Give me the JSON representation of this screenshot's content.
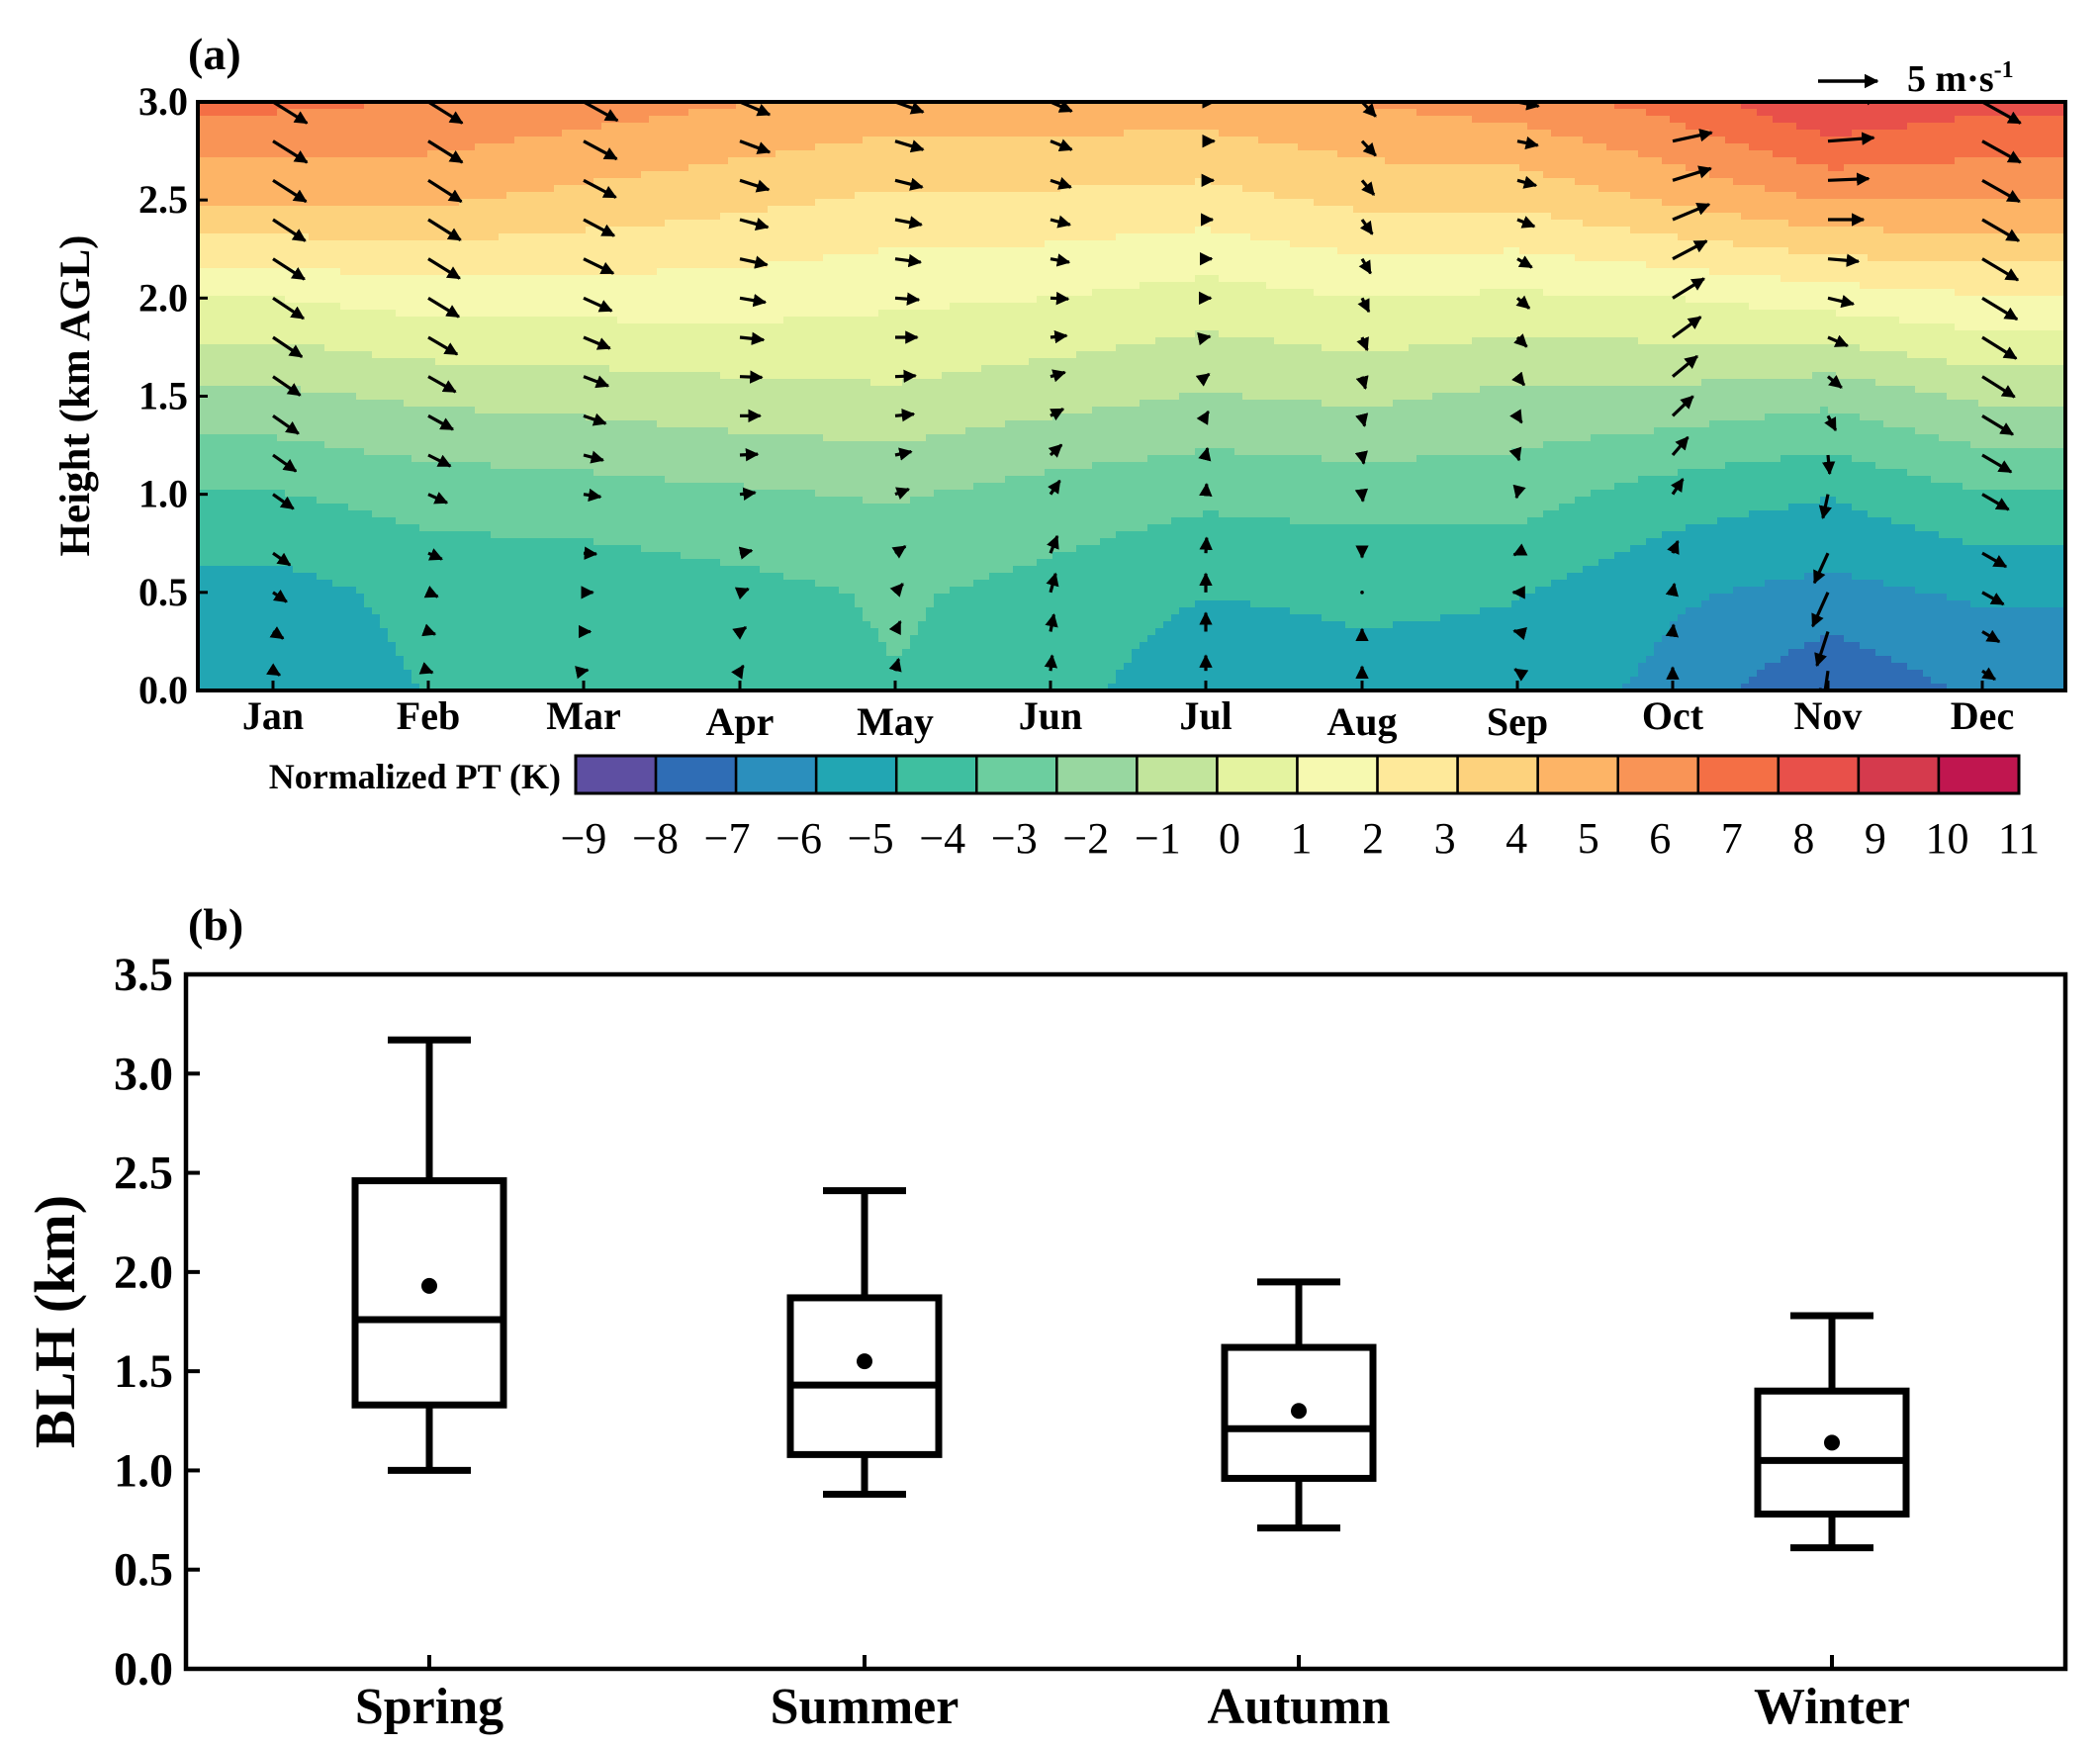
{
  "chart_data": [
    {
      "panel_label": "(a)",
      "type": "heatmap",
      "subtype": "filled-contour with wind vectors",
      "ylabel": "Height (km AGL)",
      "ylim": [
        0,
        3.0
      ],
      "yticks": [
        "0.0",
        "0.5",
        "1.0",
        "1.5",
        "2.0",
        "2.5",
        "3.0"
      ],
      "months": [
        "Jan",
        "Feb",
        "Mar",
        "Apr",
        "May",
        "Jun",
        "Jul",
        "Aug",
        "Sep",
        "Oct",
        "Nov",
        "Dec"
      ],
      "vector_key": {
        "prefix": "5 m·s",
        "exponent": "-1",
        "magnitude": 5
      },
      "colorbar": {
        "label": "Normalized PT (K)",
        "ticks": [
          "−9",
          "−8",
          "−7",
          "−6",
          "−5",
          "−4",
          "−3",
          "−2",
          "−1",
          "0",
          "1",
          "2",
          "3",
          "4",
          "5",
          "6",
          "7",
          "8",
          "9",
          "10",
          "11"
        ],
        "colors": [
          "#5e4fa2",
          "#2f6db5",
          "#2b8fbd",
          "#22a6b3",
          "#3fbfa0",
          "#6cce9f",
          "#98d7a0",
          "#c2e59c",
          "#e4f3a0",
          "#f6f9b0",
          "#fee99a",
          "#fdd27d",
          "#fdb466",
          "#f99456",
          "#f46f45",
          "#e8504a",
          "#d53a4d",
          "#c0164f"
        ]
      },
      "pt_grid_heights_km": [
        0.0,
        0.5,
        1.0,
        1.5,
        2.0,
        2.5,
        3.0
      ],
      "normalized_pt_by_month": [
        [
          -5.5,
          -5.0,
          -3.5,
          -1.5,
          1.0,
          4.5,
          6.8
        ],
        [
          -4.5,
          -4.2,
          -3.0,
          -1.0,
          1.5,
          4.5,
          6.5
        ],
        [
          -4.5,
          -4.2,
          -2.8,
          -0.8,
          1.5,
          4.0,
          6.0
        ],
        [
          -4.0,
          -3.8,
          -2.5,
          -0.5,
          1.5,
          3.5,
          5.5
        ],
        [
          -3.5,
          -3.3,
          -2.2,
          -0.3,
          1.2,
          3.0,
          5.0
        ],
        [
          -4.0,
          -3.8,
          -2.8,
          -0.8,
          1.0,
          3.0,
          5.0
        ],
        [
          -5.5,
          -4.5,
          -3.2,
          -1.3,
          0.5,
          2.8,
          5.0
        ],
        [
          -5.0,
          -4.3,
          -3.0,
          -1.0,
          1.0,
          3.5,
          5.5
        ],
        [
          -5.0,
          -4.5,
          -3.0,
          -1.5,
          0.8,
          3.5,
          6.0
        ],
        [
          -6.0,
          -5.5,
          -4.0,
          -1.5,
          1.0,
          4.5,
          7.0
        ],
        [
          -7.8,
          -6.0,
          -4.5,
          -2.0,
          1.5,
          5.5,
          8.8
        ],
        [
          -6.5,
          -5.5,
          -3.5,
          -1.0,
          2.0,
          5.5,
          8.0
        ]
      ],
      "wind_vector_heights_km": [
        0.1,
        0.3,
        0.5,
        0.7,
        1.0,
        1.2,
        1.4,
        1.6,
        1.8,
        2.0,
        2.2,
        2.4,
        2.6,
        2.8,
        3.0
      ],
      "wind_u_ms": [
        [
          0.8,
          1.2,
          1.6,
          2.0,
          2.4,
          2.7,
          3.0,
          3.2,
          3.4,
          3.6,
          3.7,
          3.8,
          3.9,
          4.0,
          4.0
        ],
        [
          0.5,
          0.8,
          1.1,
          1.6,
          2.2,
          2.6,
          2.9,
          3.2,
          3.4,
          3.6,
          3.7,
          3.8,
          3.9,
          4.0,
          4.0
        ],
        [
          0.5,
          0.8,
          1.1,
          1.5,
          2.0,
          2.3,
          2.6,
          2.9,
          3.1,
          3.3,
          3.5,
          3.6,
          3.8,
          3.9,
          4.0
        ],
        [
          0.4,
          0.7,
          1.0,
          1.4,
          1.8,
          2.1,
          2.4,
          2.6,
          2.8,
          3.0,
          3.2,
          3.3,
          3.4,
          3.5,
          3.5
        ],
        [
          0.4,
          0.6,
          0.9,
          1.2,
          1.6,
          1.9,
          2.2,
          2.4,
          2.6,
          2.8,
          3.0,
          3.1,
          3.2,
          3.3,
          3.3
        ],
        [
          0.2,
          0.4,
          0.6,
          0.8,
          1.1,
          1.3,
          1.5,
          1.7,
          1.9,
          2.1,
          2.2,
          2.3,
          2.4,
          2.5,
          2.5
        ],
        [
          0.0,
          0.0,
          0.0,
          0.1,
          0.1,
          0.2,
          0.3,
          0.4,
          0.5,
          0.6,
          0.7,
          0.8,
          0.9,
          1.0,
          1.0
        ],
        [
          0.0,
          0.0,
          0.0,
          0.0,
          0.1,
          0.2,
          0.3,
          0.4,
          0.6,
          0.8,
          1.0,
          1.2,
          1.4,
          1.6,
          1.6
        ],
        [
          -0.3,
          -0.4,
          -0.5,
          -0.4,
          -0.1,
          0.2,
          0.5,
          0.8,
          1.1,
          1.4,
          1.7,
          2.0,
          2.2,
          2.4,
          2.5
        ],
        [
          0.0,
          0.1,
          0.2,
          0.6,
          1.2,
          1.8,
          2.4,
          2.9,
          3.3,
          3.7,
          4.0,
          4.3,
          4.5,
          4.6,
          4.6
        ],
        [
          -0.5,
          -1.3,
          -1.8,
          -1.6,
          -0.6,
          0.2,
          0.9,
          1.6,
          2.3,
          3.0,
          3.6,
          4.2,
          4.8,
          5.4,
          6.0
        ],
        [
          1.5,
          2.0,
          2.5,
          2.8,
          3.1,
          3.4,
          3.6,
          3.8,
          4.0,
          4.1,
          4.2,
          4.3,
          4.4,
          4.5,
          4.5
        ]
      ],
      "wind_v_ms": [
        [
          -0.5,
          -0.8,
          -1.1,
          -1.4,
          -1.7,
          -1.9,
          -2.1,
          -2.2,
          -2.3,
          -2.4,
          -2.4,
          -2.5,
          -2.5,
          -2.5,
          -2.5
        ],
        [
          -0.2,
          -0.3,
          -0.5,
          -0.7,
          -1.0,
          -1.3,
          -1.6,
          -1.8,
          -2.0,
          -2.2,
          -2.3,
          -2.4,
          -2.5,
          -2.5,
          -2.5
        ],
        [
          0.1,
          0.0,
          0.0,
          -0.1,
          -0.3,
          -0.6,
          -0.9,
          -1.1,
          -1.3,
          -1.5,
          -1.7,
          -1.9,
          -2.0,
          -2.1,
          -2.2
        ],
        [
          0.6,
          0.5,
          0.4,
          0.3,
          0.2,
          0.1,
          0.0,
          -0.1,
          -0.3,
          -0.5,
          -0.7,
          -0.9,
          -1.1,
          -1.3,
          -1.5
        ],
        [
          1.4,
          1.2,
          1.0,
          0.8,
          0.6,
          0.4,
          0.2,
          0.1,
          0.0,
          -0.2,
          -0.4,
          -0.6,
          -0.8,
          -1.0,
          -1.2
        ],
        [
          1.8,
          2.0,
          2.2,
          2.0,
          1.6,
          1.2,
          0.8,
          0.5,
          0.2,
          -0.1,
          -0.4,
          -0.6,
          -0.8,
          -1.0,
          -1.1
        ],
        [
          1.8,
          2.2,
          2.2,
          1.8,
          1.2,
          0.8,
          0.5,
          0.3,
          0.1,
          0.0,
          0.0,
          0.0,
          0.0,
          0.0,
          0.0
        ],
        [
          0.5,
          0.3,
          0.0,
          -0.5,
          -0.8,
          -1.0,
          -1.2,
          -1.4,
          -1.5,
          -1.6,
          -1.7,
          -1.7,
          -1.7,
          -1.7,
          -1.7
        ],
        [
          0.2,
          0.1,
          0.0,
          -0.2,
          -0.4,
          -0.6,
          -0.8,
          -1.0,
          -1.1,
          -1.2,
          -1.0,
          -0.8,
          -0.6,
          -0.5,
          -0.5
        ],
        [
          0.4,
          0.8,
          1.0,
          1.4,
          1.8,
          2.1,
          2.3,
          2.4,
          2.4,
          2.3,
          2.1,
          1.8,
          1.4,
          1.0,
          0.8
        ],
        [
          -3.5,
          -4.0,
          -4.0,
          -3.5,
          -2.8,
          -2.2,
          -1.7,
          -1.3,
          -1.0,
          -0.7,
          -0.3,
          0.0,
          0.2,
          0.4,
          0.5
        ],
        [
          -1.0,
          -1.2,
          -1.4,
          -1.6,
          -1.8,
          -2.0,
          -2.2,
          -2.4,
          -2.5,
          -2.5,
          -2.5,
          -2.5,
          -2.5,
          -2.5,
          -2.5
        ]
      ]
    },
    {
      "panel_label": "(b)",
      "type": "box",
      "categories": [
        "Spring",
        "Summer",
        "Autumn",
        "Winter"
      ],
      "ylabel": "BLH (km)",
      "ylim": [
        0,
        3.5
      ],
      "yticks": [
        "0.0",
        "0.5",
        "1.0",
        "1.5",
        "2.0",
        "2.5",
        "3.0",
        "3.5"
      ],
      "boxes": [
        {
          "category": "Spring",
          "whisker_low": 1.0,
          "q1": 1.33,
          "median": 1.76,
          "q3": 2.46,
          "whisker_high": 3.17,
          "mean": 1.93
        },
        {
          "category": "Summer",
          "whisker_low": 0.88,
          "q1": 1.08,
          "median": 1.43,
          "q3": 1.87,
          "whisker_high": 2.41,
          "mean": 1.55
        },
        {
          "category": "Autumn",
          "whisker_low": 0.71,
          "q1": 0.96,
          "median": 1.21,
          "q3": 1.62,
          "whisker_high": 1.95,
          "mean": 1.3
        },
        {
          "category": "Winter",
          "whisker_low": 0.61,
          "q1": 0.78,
          "median": 1.05,
          "q3": 1.4,
          "whisker_high": 1.78,
          "mean": 1.14
        }
      ]
    }
  ]
}
